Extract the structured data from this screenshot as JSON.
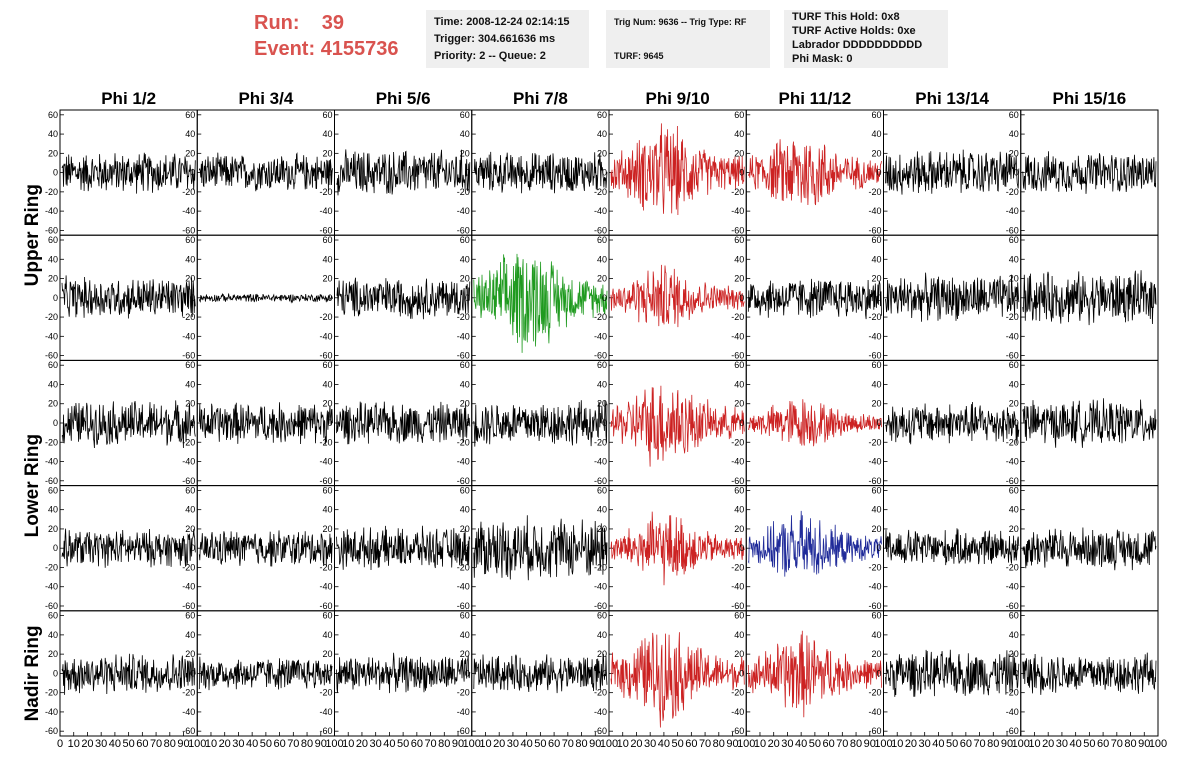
{
  "header": {
    "run_label": "Run:",
    "run_value": "39",
    "event_label": "Event:",
    "event_value": "4155736",
    "info_box_1": [
      "Time: 2008-12-24 02:14:15",
      "Trigger: 304.661636 ms",
      "Priority: 2 -- Queue: 2"
    ],
    "info_box_2": [
      "Trig Num: 9636 -- Trig Type: RF",
      "",
      "TURF: 9645"
    ],
    "info_box_3": [
      "TURF This Hold: 0x8",
      "TURF Active Holds: 0xe",
      "Labrador DDDDDDDDDD",
      "Phi Mask: 0"
    ]
  },
  "chart_data": {
    "type": "line",
    "columns": [
      "Phi 1/2",
      "Phi 3/4",
      "Phi 5/6",
      "Phi 7/8",
      "Phi 9/10",
      "Phi 11/12",
      "Phi 13/14",
      "Phi 15/16"
    ],
    "row_groups": [
      "Upper Ring",
      "Lower Ring",
      "Nadir Ring"
    ],
    "ylim": [
      -65,
      65
    ],
    "y_ticks": [
      60,
      40,
      20,
      0,
      -20,
      -40,
      -60
    ],
    "xlim": [
      0,
      100
    ],
    "x_ticks": [
      0,
      10,
      20,
      30,
      40,
      50,
      60,
      70,
      80,
      90,
      100
    ],
    "colors": {
      "normal": "#000000",
      "red": "#cc2222",
      "green": "#1f9a1f",
      "blue": "#1f2a99"
    },
    "panels": [
      [
        "normal",
        "normal",
        "normal",
        "normal",
        "red",
        "red",
        "normal",
        "normal"
      ],
      [
        "normal",
        "normal",
        "normal",
        "green",
        "red",
        "normal",
        "normal",
        "normal"
      ],
      [
        "normal",
        "normal",
        "normal",
        "normal",
        "red",
        "red",
        "normal",
        "normal"
      ],
      [
        "normal",
        "normal",
        "normal",
        "normal",
        "red",
        "blue",
        "normal",
        "normal"
      ],
      [
        "normal",
        "normal",
        "normal",
        "normal",
        "red",
        "red",
        "normal",
        "normal"
      ]
    ],
    "amplitude": [
      [
        20,
        18,
        22,
        20,
        40,
        35,
        22,
        20
      ],
      [
        20,
        4,
        20,
        45,
        28,
        20,
        22,
        25
      ],
      [
        22,
        20,
        20,
        22,
        38,
        22,
        20,
        22
      ],
      [
        18,
        18,
        20,
        30,
        30,
        30,
        18,
        20
      ],
      [
        20,
        16,
        18,
        18,
        40,
        35,
        22,
        20
      ]
    ]
  }
}
